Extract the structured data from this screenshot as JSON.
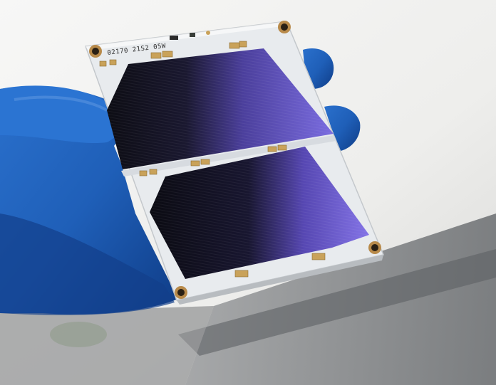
{
  "photo": {
    "board_label": "02170 21S2 05W"
  },
  "colors": {
    "background_light": "#f3f3f1",
    "window_frame_gray": "#7d8083",
    "glove_blue": "#1f5fb8",
    "glove_shadow": "#0e3a82",
    "board_white": "#e9ecef",
    "cell_dark": "#101018",
    "cell_purple": "#6e5fd6",
    "contact_gold": "#c9a25a"
  }
}
